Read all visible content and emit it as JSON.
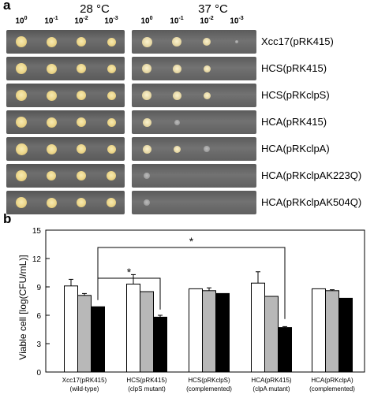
{
  "panel_a": {
    "letter": "a",
    "temps": [
      "28 °C",
      "37 °C"
    ],
    "dilutions": [
      {
        "base": "10",
        "exp": "0"
      },
      {
        "base": "10",
        "exp": "-1"
      },
      {
        "base": "10",
        "exp": "-2"
      },
      {
        "base": "10",
        "exp": "-3"
      }
    ],
    "strains": [
      "Xcc17(pRK415)",
      "HCS(pRK415)",
      "HCS(pRKclpS)",
      "HCA(pRK415)",
      "HCA(pRKclpA)",
      "HCA(pRKclpAK223Q)",
      "HCA(pRKclpAK504Q)"
    ]
  },
  "panel_b": {
    "letter": "b",
    "significance": [
      "*",
      "*"
    ]
  },
  "chart_data": {
    "type": "bar",
    "ylabel": "Viable cell [log(CFU/mL)]",
    "ylim": [
      0,
      15
    ],
    "yticks": [
      0,
      3,
      6,
      9,
      12,
      15
    ],
    "categories": [
      {
        "label": "Xcc17(pRK415)",
        "sub": "(wild-type)"
      },
      {
        "label": "HCS(pRK415)",
        "sub": "(clpS mutant)"
      },
      {
        "label": "HCS(pRKclpS)",
        "sub": "(complemented)"
      },
      {
        "label": "HCA(pRK415)",
        "sub": "(clpA mutant)"
      },
      {
        "label": "HCA(pRKclpA)",
        "sub": "(complemented)"
      }
    ],
    "series": [
      {
        "color": "#ffffff",
        "values": [
          9.1,
          9.3,
          8.8,
          9.4,
          8.8
        ],
        "errors": [
          0.7,
          1.0,
          0.0,
          1.2,
          0.0
        ]
      },
      {
        "color": "#b8b8b8",
        "values": [
          8.1,
          8.5,
          8.6,
          8.0,
          8.6
        ],
        "errors": [
          0.2,
          0.0,
          0.3,
          0.0,
          0.1
        ]
      },
      {
        "color": "#000000",
        "values": [
          6.9,
          5.8,
          8.3,
          4.7,
          7.8
        ],
        "errors": [
          0.0,
          0.2,
          0.0,
          0.1,
          0.0
        ]
      }
    ]
  }
}
